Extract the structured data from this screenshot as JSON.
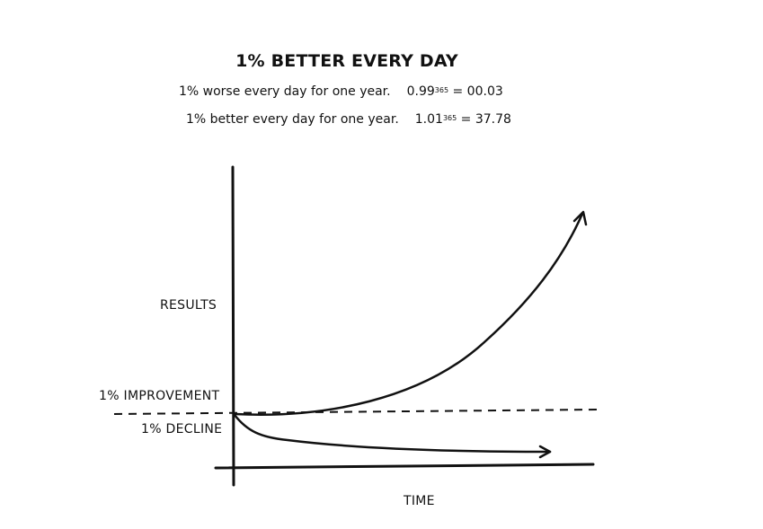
{
  "title": "1% BETTER EVERY DAY",
  "worse": {
    "text": "1% worse every day for one year.",
    "base": "0.99",
    "exponent": "365",
    "result": " = 00.03"
  },
  "better": {
    "text": "1% better every day for one year.",
    "base": "1.01",
    "exponent": "365",
    "result": " = 37.78"
  },
  "labels": {
    "results": "RESULTS",
    "improvement": "1% IMPROVEMENT",
    "decline": "1% DECLINE",
    "time": "TIME"
  },
  "colors": {
    "ink": "#111111",
    "background": "#ffffff"
  }
}
